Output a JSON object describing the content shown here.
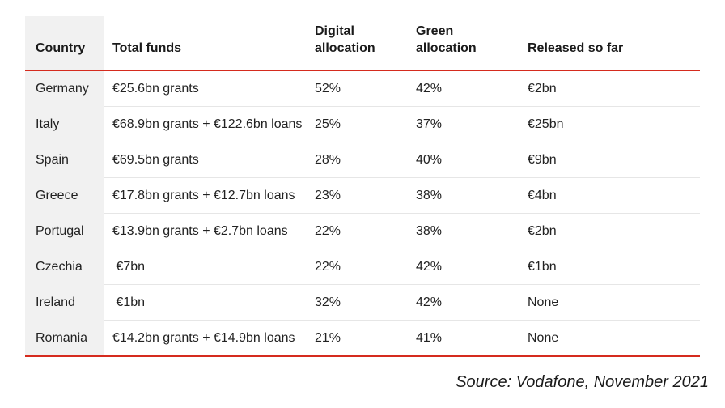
{
  "table": {
    "headers": [
      "Country",
      "Total funds",
      "Digital\nallocation",
      "Green\nallocation",
      "Released so far"
    ],
    "rows": [
      [
        "Germany",
        "€25.6bn grants",
        "52%",
        "42%",
        "€2bn"
      ],
      [
        "Italy",
        "€68.9bn grants + €122.6bn loans",
        "25%",
        "37%",
        "€25bn"
      ],
      [
        "Spain",
        "€69.5bn grants",
        "28%",
        "40%",
        "€9bn"
      ],
      [
        "Greece",
        "€17.8bn grants + €12.7bn loans",
        "23%",
        "38%",
        "€4bn"
      ],
      [
        "Portugal",
        "€13.9bn grants + €2.7bn loans",
        "22%",
        "38%",
        "€2bn"
      ],
      [
        "Czechia",
        " €7bn",
        "22%",
        "42%",
        "€1bn"
      ],
      [
        "Ireland",
        " €1bn",
        "32%",
        "42%",
        "None"
      ],
      [
        "Romania",
        "€14.2bn grants + €14.9bn loans",
        "21%",
        "41%",
        "None"
      ]
    ]
  },
  "source": "Source: Vodafone, November 2021",
  "colors": {
    "accent_line": "#d52b1e",
    "country_column_bg": "#f1f1f1",
    "row_separator": "#e6e6e6"
  }
}
